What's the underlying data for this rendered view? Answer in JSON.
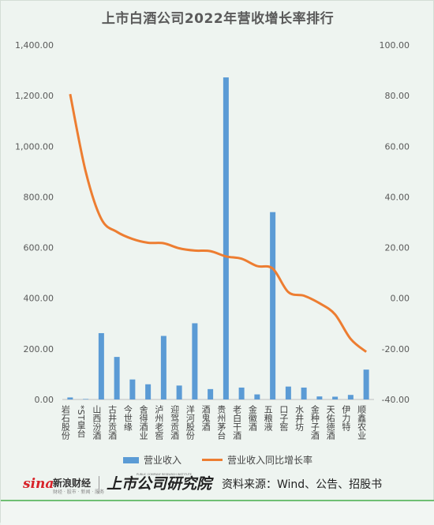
{
  "chart_data": {
    "type": "bar+line",
    "title": "上市白酒公司2022年营收增长率排行",
    "categories": [
      "岩石股份",
      "*ST皇台",
      "山西汾酒",
      "古井贡酒",
      "今世缘",
      "舍得酒业",
      "泸州老窖",
      "迎驾贡酒",
      "洋河股份",
      "酒鬼酒",
      "贵州茅台",
      "老白干酒",
      "金徽酒",
      "五粮液",
      "口子窖",
      "水井坊",
      "金种子酒",
      "天佑德酒",
      "伊力特",
      "顺鑫农业"
    ],
    "series": [
      {
        "name": "营业收入",
        "type": "bar",
        "axis": "left",
        "values": [
          8,
          2,
          262,
          168,
          79,
          60,
          251,
          55,
          301,
          41,
          1272,
          47,
          20,
          740,
          51,
          47,
          12,
          11,
          18,
          118
        ]
      },
      {
        "name": "营业收入同比增长率",
        "type": "line",
        "axis": "right",
        "values": [
          80.6,
          50.0,
          31.3,
          26.2,
          23.4,
          21.9,
          21.7,
          19.7,
          18.8,
          18.6,
          16.5,
          15.6,
          12.7,
          11.7,
          2.4,
          1.0,
          -2.0,
          -6.4,
          -16.1,
          -21.2
        ]
      }
    ],
    "y_left": {
      "min": 0,
      "max": 1400,
      "step": 200,
      "ticks": [
        "0.00",
        "200.00",
        "400.00",
        "600.00",
        "800.00",
        "1,000.00",
        "1,200.00",
        "1,400.00"
      ]
    },
    "y_right": {
      "min": -40,
      "max": 100,
      "step": 20,
      "ticks": [
        "-40.00",
        "-20.00",
        "0.00",
        "20.00",
        "40.00",
        "60.00",
        "80.00",
        "100.00"
      ]
    },
    "grid": false,
    "legend_position": "bottom",
    "colors": {
      "bar": "#5b9bd5",
      "line": "#ed7d31"
    }
  },
  "legend": {
    "bar_label": "营业收入",
    "line_label": "营业收入同比增长率"
  },
  "footer": {
    "sina_logo": "sina",
    "sina_name": "新浪财经",
    "sina_sub": "财经 · 股市 · 新闻 · 服务",
    "institute_name": "上市公司研究院",
    "institute_en": "PUBLIC COMPANY RESEARCH INSTITUTE",
    "source": "资料来源：Wind、公告、招股书"
  }
}
